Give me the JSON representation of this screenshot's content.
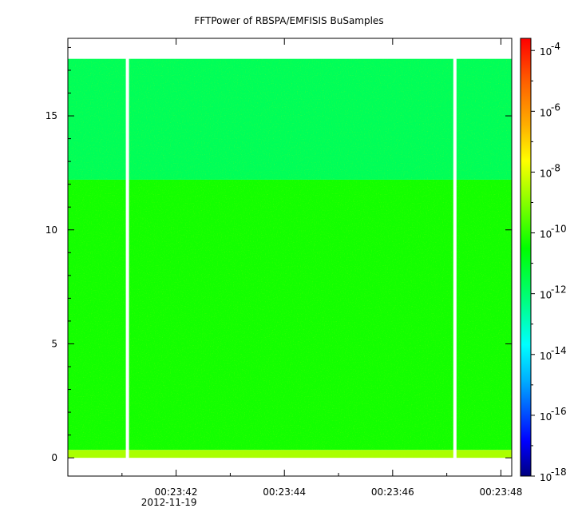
{
  "chart_data": {
    "type": "heatmap",
    "title": "FFTPower of RBSPA/EMFISIS  BuSamples",
    "xlabel": "",
    "ylabel": "",
    "x_ticks": [
      {
        "value": "00:23:42",
        "sub": "2012-11-19"
      },
      {
        "value": "00:23:44",
        "sub": ""
      },
      {
        "value": "00:23:46",
        "sub": ""
      },
      {
        "value": "00:23:48",
        "sub": ""
      }
    ],
    "x_range_seconds": [
      40.0,
      48.2
    ],
    "y_ticks": [
      "0",
      "5",
      "10",
      "15"
    ],
    "ylim": [
      -0.8,
      18.4
    ],
    "data_y_range": [
      0.0,
      17.5
    ],
    "bands": [
      {
        "y_from": 0.0,
        "y_to": 0.35,
        "log10_power": -8.6,
        "note": "yellow strip near zero"
      },
      {
        "y_from": 0.35,
        "y_to": 12.2,
        "log10_power": -10.3
      },
      {
        "y_from": 12.2,
        "y_to": 17.5,
        "log10_power": -11.7
      }
    ],
    "gaps_seconds": [
      41.1,
      47.15
    ],
    "colorbar": {
      "scale": "log",
      "range_exp": [
        -18,
        -3.6
      ],
      "tick_exponents": [
        "-4",
        "-6",
        "-8",
        "-10",
        "-12",
        "-14",
        "-16",
        "-18"
      ],
      "tick_base": "10"
    },
    "colors": {
      "colormap": [
        "#000080",
        "#0000ff",
        "#00b0ff",
        "#00ffff",
        "#00ff80",
        "#00ff00",
        "#80ff00",
        "#ffff00",
        "#ffb000",
        "#ff6000",
        "#ff0000"
      ],
      "background": "#ffffff",
      "gap": "#ffffff"
    }
  }
}
